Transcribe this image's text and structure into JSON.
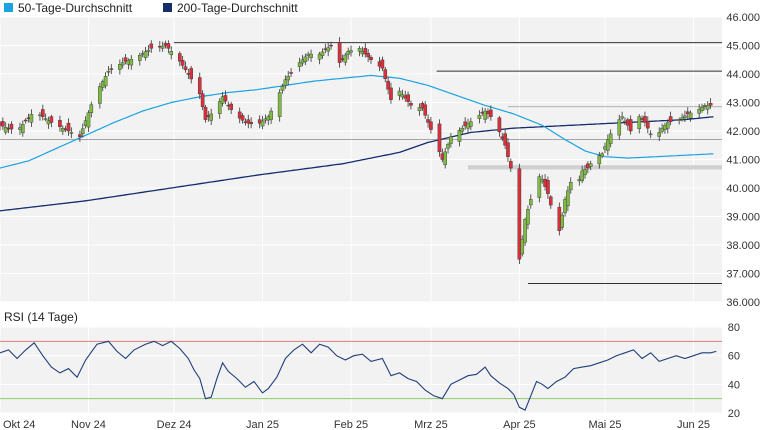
{
  "legend": {
    "ma50_label": "50-Tage-Durchschnitt",
    "ma200_label": "200-Tage-Durchschnitt"
  },
  "rsi_label": "RSI (14 Tage)",
  "colors": {
    "up": "#7dbb42",
    "down": "#d9303c",
    "ma50": "#1aa3e0",
    "ma200": "#162d6d",
    "rsi": "#1f3f7a",
    "rsi_upper": "#e07a7a",
    "rsi_lower": "#8fc96b",
    "panel_bg": "#f2f2f2",
    "grid": "#ffffff",
    "support_band": "#d0d0d0"
  },
  "chart_data": [
    {
      "type": "candlestick",
      "title": "",
      "ylim": [
        36000,
        46000
      ],
      "y_ticks": [
        "36.000",
        "37.000",
        "38.000",
        "39.000",
        "40.000",
        "41.000",
        "42.000",
        "43.000",
        "44.000",
        "45.000",
        "46.000"
      ],
      "x_ticks": [
        "Okt 24",
        "Nov 24",
        "Dez 24",
        "Jan 25",
        "Feb 25",
        "Mrz 25",
        "Apr 25",
        "Mai 25",
        "Jun 25"
      ],
      "x_tick_days": [
        0,
        31,
        61,
        92,
        123,
        151,
        182,
        212,
        243
      ],
      "x_range_days": [
        0,
        253
      ],
      "close_anchors": [
        [
          0,
          42200
        ],
        [
          6,
          42000
        ],
        [
          12,
          42700
        ],
        [
          18,
          42300
        ],
        [
          24,
          42000
        ],
        [
          28,
          41800
        ],
        [
          33,
          43200
        ],
        [
          38,
          44100
        ],
        [
          43,
          44400
        ],
        [
          48,
          44600
        ],
        [
          53,
          44900
        ],
        [
          58,
          45000
        ],
        [
          62,
          44600
        ],
        [
          66,
          44000
        ],
        [
          70,
          43300
        ],
        [
          72,
          42400
        ],
        [
          75,
          42700
        ],
        [
          78,
          43200
        ],
        [
          82,
          42600
        ],
        [
          86,
          42300
        ],
        [
          90,
          42200
        ],
        [
          94,
          42500
        ],
        [
          96,
          42900
        ],
        [
          100,
          43800
        ],
        [
          104,
          44300
        ],
        [
          108,
          44700
        ],
        [
          112,
          44700
        ],
        [
          116,
          45000
        ],
        [
          119,
          44400
        ],
        [
          122,
          44800
        ],
        [
          126,
          44900
        ],
        [
          130,
          44500
        ],
        [
          134,
          44200
        ],
        [
          137,
          43100
        ],
        [
          140,
          43400
        ],
        [
          144,
          42900
        ],
        [
          148,
          42800
        ],
        [
          152,
          41800
        ],
        [
          155,
          41000
        ],
        [
          158,
          41800
        ],
        [
          162,
          42100
        ],
        [
          166,
          42400
        ],
        [
          170,
          42700
        ],
        [
          172,
          42500
        ],
        [
          174,
          42200
        ],
        [
          177,
          41500
        ],
        [
          180,
          40300
        ],
        [
          182,
          37500
        ],
        [
          184,
          38900
        ],
        [
          186,
          39600
        ],
        [
          188,
          40500
        ],
        [
          190,
          40300
        ],
        [
          192,
          39800
        ],
        [
          194,
          39000
        ],
        [
          196,
          38500
        ],
        [
          198,
          39600
        ],
        [
          200,
          40200
        ],
        [
          202,
          40000
        ],
        [
          204,
          40600
        ],
        [
          206,
          40700
        ],
        [
          208,
          41000
        ],
        [
          211,
          41200
        ],
        [
          213,
          41700
        ],
        [
          216,
          42300
        ],
        [
          218,
          42500
        ],
        [
          220,
          42200
        ],
        [
          222,
          41800
        ],
        [
          224,
          42500
        ],
        [
          226,
          42300
        ],
        [
          228,
          41900
        ],
        [
          230,
          41800
        ],
        [
          232,
          42100
        ],
        [
          234,
          42300
        ],
        [
          238,
          42400
        ],
        [
          241,
          42600
        ],
        [
          244,
          42700
        ],
        [
          247,
          42900
        ],
        [
          250,
          42900
        ]
      ],
      "ma50_anchors": [
        [
          0,
          40700
        ],
        [
          10,
          40950
        ],
        [
          20,
          41400
        ],
        [
          30,
          41850
        ],
        [
          40,
          42300
        ],
        [
          50,
          42700
        ],
        [
          60,
          43000
        ],
        [
          70,
          43200
        ],
        [
          80,
          43350
        ],
        [
          90,
          43450
        ],
        [
          100,
          43600
        ],
        [
          110,
          43750
        ],
        [
          120,
          43850
        ],
        [
          130,
          43950
        ],
        [
          140,
          43850
        ],
        [
          150,
          43600
        ],
        [
          160,
          43250
        ],
        [
          170,
          42900
        ],
        [
          180,
          42600
        ],
        [
          190,
          42200
        ],
        [
          198,
          41700
        ],
        [
          205,
          41300
        ],
        [
          212,
          41100
        ],
        [
          220,
          41050
        ],
        [
          230,
          41100
        ],
        [
          240,
          41150
        ],
        [
          250,
          41200
        ]
      ],
      "ma200_anchors": [
        [
          0,
          39200
        ],
        [
          30,
          39550
        ],
        [
          60,
          40000
        ],
        [
          90,
          40450
        ],
        [
          120,
          40850
        ],
        [
          140,
          41250
        ],
        [
          150,
          41600
        ],
        [
          165,
          41950
        ],
        [
          180,
          42100
        ],
        [
          200,
          42200
        ],
        [
          220,
          42300
        ],
        [
          240,
          42400
        ],
        [
          250,
          42500
        ]
      ],
      "horizontal_lines": [
        {
          "value": 45100,
          "from_day": 61,
          "to_day": 253
        },
        {
          "value": 44100,
          "from_day": 153,
          "to_day": 253
        },
        {
          "value": 42850,
          "from_day": 178,
          "to_day": 253
        },
        {
          "value": 41700,
          "from_day": 0,
          "to_day": 253
        },
        {
          "value": 36650,
          "from_day": 185,
          "to_day": 253
        }
      ],
      "support_band": {
        "low": 40650,
        "high": 40800,
        "from_day": 164,
        "to_day": 253
      }
    },
    {
      "type": "line",
      "title": "RSI (14 Tage)",
      "ylim": [
        20,
        80
      ],
      "y_ticks": [
        "20",
        "40",
        "60",
        "80"
      ],
      "upper_level": 70,
      "lower_level": 30,
      "anchors": [
        [
          0,
          62
        ],
        [
          3,
          64
        ],
        [
          6,
          58
        ],
        [
          9,
          64
        ],
        [
          12,
          69
        ],
        [
          15,
          60
        ],
        [
          18,
          52
        ],
        [
          21,
          48
        ],
        [
          24,
          51
        ],
        [
          27,
          45
        ],
        [
          30,
          57
        ],
        [
          34,
          68
        ],
        [
          38,
          70
        ],
        [
          41,
          63
        ],
        [
          44,
          58
        ],
        [
          47,
          64
        ],
        [
          51,
          68
        ],
        [
          54,
          70
        ],
        [
          57,
          67
        ],
        [
          60,
          70
        ],
        [
          63,
          65
        ],
        [
          66,
          58
        ],
        [
          68,
          50
        ],
        [
          70,
          44
        ],
        [
          72,
          30
        ],
        [
          74,
          31
        ],
        [
          76,
          44
        ],
        [
          78,
          55
        ],
        [
          80,
          49
        ],
        [
          83,
          44
        ],
        [
          86,
          38
        ],
        [
          89,
          42
        ],
        [
          92,
          34
        ],
        [
          94,
          37
        ],
        [
          97,
          45
        ],
        [
          100,
          58
        ],
        [
          103,
          64
        ],
        [
          106,
          68
        ],
        [
          109,
          62
        ],
        [
          112,
          68
        ],
        [
          115,
          66
        ],
        [
          118,
          60
        ],
        [
          121,
          57
        ],
        [
          124,
          60
        ],
        [
          127,
          61
        ],
        [
          130,
          56
        ],
        [
          134,
          58
        ],
        [
          137,
          46
        ],
        [
          140,
          48
        ],
        [
          143,
          44
        ],
        [
          146,
          42
        ],
        [
          149,
          36
        ],
        [
          152,
          32
        ],
        [
          155,
          30
        ],
        [
          158,
          40
        ],
        [
          161,
          43
        ],
        [
          164,
          46
        ],
        [
          167,
          47
        ],
        [
          170,
          52
        ],
        [
          172,
          46
        ],
        [
          175,
          41
        ],
        [
          178,
          37
        ],
        [
          180,
          33
        ],
        [
          182,
          24
        ],
        [
          184,
          22
        ],
        [
          186,
          32
        ],
        [
          188,
          42
        ],
        [
          190,
          40
        ],
        [
          192,
          37
        ],
        [
          195,
          42
        ],
        [
          198,
          45
        ],
        [
          201,
          51
        ],
        [
          204,
          52
        ],
        [
          207,
          53
        ],
        [
          210,
          55
        ],
        [
          213,
          57
        ],
        [
          216,
          60
        ],
        [
          219,
          62
        ],
        [
          222,
          64
        ],
        [
          225,
          58
        ],
        [
          228,
          62
        ],
        [
          231,
          56
        ],
        [
          234,
          58
        ],
        [
          237,
          60
        ],
        [
          240,
          58
        ],
        [
          243,
          60
        ],
        [
          246,
          62
        ],
        [
          249,
          62
        ],
        [
          251,
          63
        ]
      ]
    }
  ]
}
